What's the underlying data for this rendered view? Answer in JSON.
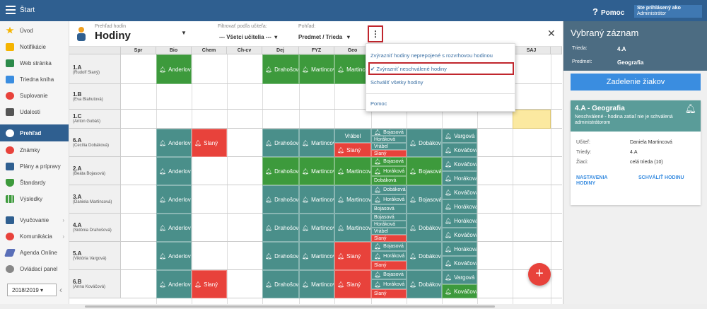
{
  "topbar": {
    "title": "Štart",
    "help": "Pomoc",
    "user_line1": "Ste prihlásený ako",
    "user_line2": "Administrátor"
  },
  "sidebar": {
    "items": [
      {
        "label": "Úvod",
        "color": "#f5b400"
      },
      {
        "label": "Notifikácie",
        "color": "#f5b400"
      },
      {
        "label": "Web stránka",
        "color": "#2c8a4a"
      },
      {
        "label": "Triedna kniha",
        "color": "#3a8de0"
      },
      {
        "label": "Suplovanie",
        "color": "#e8423b"
      },
      {
        "label": "Udalosti",
        "color": "#555555"
      },
      {
        "label": "Prehľad",
        "color": "#ffffff"
      },
      {
        "label": "Známky",
        "color": "#e8423b"
      },
      {
        "label": "Plány a prípravy",
        "color": "#2f5f90"
      },
      {
        "label": "Štandardy",
        "color": "#3d9a3c"
      },
      {
        "label": "Výsledky",
        "color": "#3d9a3c"
      },
      {
        "label": "Vyučovanie",
        "color": "#2f5f90"
      },
      {
        "label": "Komunikácia",
        "color": "#e8423b"
      },
      {
        "label": "Agenda Online",
        "color": "#5a6fb8"
      },
      {
        "label": "Ovládací panel",
        "color": "#888888"
      }
    ],
    "year": "2018/2019"
  },
  "header": {
    "subtitle": "Prehľad hodín",
    "title": "Hodiny",
    "filter_label": "Filtrovať podľa učiteľa:",
    "filter_value": "--- Všetci učitelia ---",
    "view_label": "Pohľad:",
    "view_value": "Predmet / Trieda"
  },
  "columns": [
    "Spr",
    "Bio",
    "Chem",
    "Ch-cv",
    "Dej",
    "FYZ",
    "Geo",
    "",
    "",
    "",
    "",
    "SAJ",
    ""
  ],
  "rows": [
    {
      "name": "1.A",
      "teacher": "(Rudolf Slaný)"
    },
    {
      "name": "1.B",
      "teacher": "(Eva Blahutová)"
    },
    {
      "name": "1.C",
      "teacher": "(Anton Gubáš)"
    },
    {
      "name": "6.A",
      "teacher": "(Cecília Dobáková)"
    },
    {
      "name": "2.A",
      "teacher": "(Beáta Bojasová)"
    },
    {
      "name": "3.A",
      "teacher": "(Daniela Martincová)"
    },
    {
      "name": "4.A",
      "teacher": "(Sidónia Drahošová)"
    },
    {
      "name": "5.A",
      "teacher": "(Viktória Vargová)"
    },
    {
      "name": "6.B",
      "teacher": "(Anna Kováčová)"
    }
  ],
  "names": {
    "anderlova": "Anderlová",
    "slany": "Slaný",
    "drahosova": "Drahošová",
    "martincova": "Martincová",
    "vrabel": "Vrábel",
    "bojasova": "Bojasová",
    "horakova": "Horáková",
    "dobakova": "Dobáková",
    "vargova": "Vargová",
    "kovacova": "Kováčová"
  },
  "popup": {
    "item1": "Zvýrazniť hodiny neprepojené s rozvrhovou hodinou",
    "item2": "Zvýrazniť neschválené hodiny",
    "item3": "Schváliť všetky hodiny",
    "item4": "Pomoc"
  },
  "right": {
    "title": "Vybraný záznam",
    "k1": "Trieda:",
    "v1": "4.A",
    "k2": "Predmet:",
    "v2": "Geografia",
    "button": "Zadelenie žiakov",
    "card_title": "4.A - Geografia",
    "card_desc": "Neschválené - hodina zatiaľ nie je schválená administrátorom",
    "teacher_k": "Učiteľ:",
    "teacher_v": "Daniela Martincová",
    "class_k": "Triedy:",
    "class_v": "4.A",
    "pupils_k": "Žiaci:",
    "pupils_v": "celá trieda (10)",
    "action1": "NASTAVENIA HODINY",
    "action2": "SCHVÁLIŤ HODINU"
  },
  "colors": {
    "green": "#3d9a3c",
    "teal": "#4a8f8a",
    "red": "#e8423b",
    "yellow": "#fbe9a0",
    "primary": "#2f5f90"
  }
}
